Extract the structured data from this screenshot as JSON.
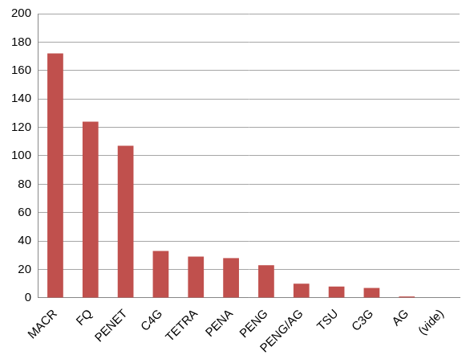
{
  "chart_data": {
    "type": "bar",
    "categories": [
      "MACR",
      "FQ",
      "PENET",
      "C4G",
      "TETRA",
      "PENA",
      "PENG",
      "PENG/AG",
      "TSU",
      "C3G",
      "AG",
      "(vide)"
    ],
    "values": [
      172,
      124,
      107,
      33,
      29,
      28,
      23,
      10,
      8,
      7,
      1,
      0
    ],
    "color": "#c0504d",
    "ylim": [
      0,
      200
    ],
    "yticks": [
      0,
      20,
      40,
      60,
      80,
      100,
      120,
      140,
      160,
      180,
      200
    ],
    "grid": true
  }
}
